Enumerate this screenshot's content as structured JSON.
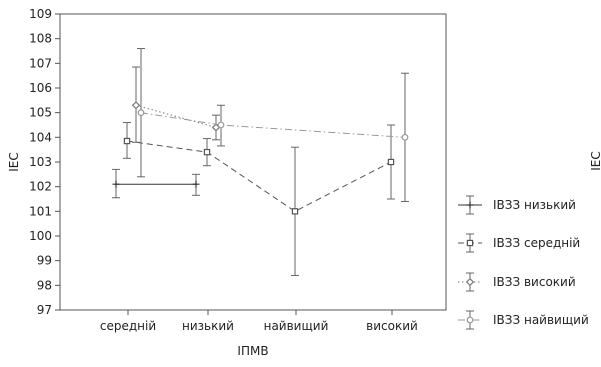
{
  "chart_data": {
    "type": "line",
    "xlabel": "ІПМВ",
    "ylabel": "ІЕС",
    "categories": [
      "середній",
      "низький",
      "найвищий",
      "високий"
    ],
    "ylim": [
      97,
      109
    ],
    "yticks": [
      97,
      98,
      99,
      100,
      101,
      102,
      103,
      104,
      105,
      106,
      107,
      108,
      109
    ],
    "grid": false,
    "legend_position": "right",
    "error_bars": true,
    "series": [
      {
        "name": "ІВЗЗ низький",
        "values": [
          102.1,
          102.1,
          null,
          null
        ],
        "low": [
          101.55,
          101.65,
          null,
          null
        ],
        "high": [
          102.7,
          102.5,
          null,
          null
        ],
        "line_style": "solid",
        "marker": "plus",
        "color": "#333333"
      },
      {
        "name": "ІВЗЗ середній",
        "values": [
          103.85,
          103.4,
          101.0,
          103.0
        ],
        "low": [
          103.15,
          102.85,
          98.4,
          101.5
        ],
        "high": [
          104.6,
          103.95,
          103.6,
          104.5
        ],
        "line_style": "dashed",
        "marker": "square",
        "color": "#555555"
      },
      {
        "name": "ІВЗЗ високий",
        "values": [
          105.3,
          104.4,
          null,
          null
        ],
        "low": [
          103.8,
          103.9,
          null,
          null
        ],
        "high": [
          106.85,
          104.9,
          null,
          null
        ],
        "line_style": "dotted",
        "marker": "diamond",
        "color": "#777777"
      },
      {
        "name": "ІВЗЗ найвищий",
        "values": [
          105.0,
          104.5,
          null,
          104.0
        ],
        "low": [
          102.4,
          103.65,
          null,
          101.4
        ],
        "high": [
          107.6,
          105.3,
          null,
          106.6
        ],
        "line_style": "dash-dot",
        "marker": "circle",
        "color": "#999999"
      }
    ]
  }
}
